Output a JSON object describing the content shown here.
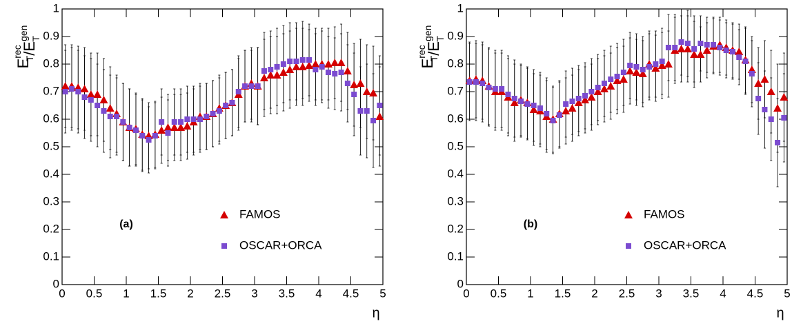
{
  "chart_data": [
    {
      "type": "scatter",
      "panel_label": "(a)",
      "xlabel": "η",
      "ylabel": [
        {
          "text": "E",
          "sup": "rec",
          "sub": "T"
        },
        {
          "text": "/E",
          "sup": "gen",
          "sub": "T"
        }
      ],
      "xlim": [
        0,
        5
      ],
      "ylim": [
        0,
        1
      ],
      "xticks": [
        0,
        0.5,
        1,
        1.5,
        2,
        2.5,
        3,
        3.5,
        4,
        4.5,
        5
      ],
      "yticks": [
        0,
        0.1,
        0.2,
        0.3,
        0.4,
        0.5,
        0.6,
        0.7,
        0.8,
        0.9,
        1
      ],
      "x": [
        0.05,
        0.15,
        0.25,
        0.35,
        0.45,
        0.55,
        0.65,
        0.75,
        0.85,
        0.95,
        1.05,
        1.15,
        1.25,
        1.35,
        1.45,
        1.55,
        1.65,
        1.75,
        1.85,
        1.95,
        2.05,
        2.15,
        2.25,
        2.35,
        2.45,
        2.55,
        2.65,
        2.75,
        2.85,
        2.95,
        3.05,
        3.15,
        3.25,
        3.35,
        3.45,
        3.55,
        3.65,
        3.75,
        3.85,
        3.95,
        4.05,
        4.15,
        4.25,
        4.35,
        4.45,
        4.55,
        4.65,
        4.75,
        4.85,
        4.95
      ],
      "series": [
        {
          "name": "FAMOS",
          "marker": "triangle",
          "color": "#d40000",
          "values": [
            0.72,
            0.72,
            0.715,
            0.71,
            0.69,
            0.69,
            0.67,
            0.64,
            0.62,
            0.59,
            0.57,
            0.565,
            0.545,
            0.54,
            0.545,
            0.56,
            0.57,
            0.57,
            0.57,
            0.575,
            0.59,
            0.61,
            0.61,
            0.62,
            0.64,
            0.65,
            0.66,
            0.69,
            0.72,
            0.73,
            0.72,
            0.75,
            0.76,
            0.76,
            0.77,
            0.78,
            0.79,
            0.79,
            0.795,
            0.8,
            0.8,
            0.8,
            0.805,
            0.805,
            0.775,
            0.725,
            0.73,
            0.7,
            0.695,
            0.61
          ],
          "errors": [
            0.15,
            0.15,
            0.15,
            0.15,
            0.15,
            0.15,
            0.15,
            0.15,
            0.14,
            0.14,
            0.14,
            0.13,
            0.13,
            0.12,
            0.12,
            0.12,
            0.12,
            0.12,
            0.12,
            0.12,
            0.12,
            0.12,
            0.12,
            0.12,
            0.12,
            0.12,
            0.12,
            0.13,
            0.13,
            0.13,
            0.14,
            0.14,
            0.14,
            0.14,
            0.14,
            0.14,
            0.14,
            0.14,
            0.13,
            0.13,
            0.13,
            0.13,
            0.13,
            0.14,
            0.14,
            0.15,
            0.16,
            0.17,
            0.17,
            0.18
          ]
        },
        {
          "name": "OSCAR+ORCA",
          "marker": "square",
          "color": "#7b4bd0",
          "values": [
            0.7,
            0.71,
            0.7,
            0.68,
            0.67,
            0.65,
            0.63,
            0.61,
            0.61,
            0.59,
            0.57,
            0.56,
            0.54,
            0.525,
            0.54,
            0.59,
            0.55,
            0.59,
            0.59,
            0.6,
            0.6,
            0.6,
            0.61,
            0.62,
            0.63,
            0.65,
            0.66,
            0.7,
            0.72,
            0.72,
            0.72,
            0.775,
            0.78,
            0.79,
            0.8,
            0.81,
            0.81,
            0.815,
            0.815,
            0.78,
            0.79,
            0.77,
            0.765,
            0.77,
            0.73,
            0.69,
            0.63,
            0.63,
            0.595,
            0.65
          ],
          "errors": [
            0.15,
            0.15,
            0.15,
            0.15,
            0.15,
            0.15,
            0.15,
            0.15,
            0.14,
            0.14,
            0.14,
            0.13,
            0.13,
            0.12,
            0.12,
            0.12,
            0.12,
            0.12,
            0.12,
            0.12,
            0.12,
            0.12,
            0.12,
            0.12,
            0.12,
            0.12,
            0.12,
            0.13,
            0.13,
            0.13,
            0.14,
            0.14,
            0.14,
            0.14,
            0.14,
            0.14,
            0.14,
            0.14,
            0.13,
            0.13,
            0.13,
            0.13,
            0.13,
            0.14,
            0.14,
            0.15,
            0.16,
            0.17,
            0.17,
            0.18
          ]
        }
      ]
    },
    {
      "type": "scatter",
      "panel_label": "(b)",
      "xlabel": "η",
      "ylabel": [
        {
          "text": "E",
          "sup": "rec",
          "sub": "T"
        },
        {
          "text": "/E",
          "sup": "gen",
          "sub": "T"
        }
      ],
      "xlim": [
        0,
        5
      ],
      "ylim": [
        0,
        1
      ],
      "xticks": [
        0,
        0.5,
        1,
        1.5,
        2,
        2.5,
        3,
        3.5,
        4,
        4.5,
        5
      ],
      "yticks": [
        0,
        0.1,
        0.2,
        0.3,
        0.4,
        0.5,
        0.6,
        0.7,
        0.8,
        0.9,
        1
      ],
      "x": [
        0.05,
        0.15,
        0.25,
        0.35,
        0.45,
        0.55,
        0.65,
        0.75,
        0.85,
        0.95,
        1.05,
        1.15,
        1.25,
        1.35,
        1.45,
        1.55,
        1.65,
        1.75,
        1.85,
        1.95,
        2.05,
        2.15,
        2.25,
        2.35,
        2.45,
        2.55,
        2.65,
        2.75,
        2.85,
        2.95,
        3.05,
        3.15,
        3.25,
        3.35,
        3.45,
        3.55,
        3.65,
        3.75,
        3.85,
        3.95,
        4.05,
        4.15,
        4.25,
        4.35,
        4.45,
        4.55,
        4.65,
        4.75,
        4.85,
        4.95
      ],
      "series": [
        {
          "name": "FAMOS",
          "marker": "triangle",
          "color": "#d40000",
          "values": [
            0.74,
            0.745,
            0.74,
            0.72,
            0.7,
            0.7,
            0.68,
            0.66,
            0.67,
            0.66,
            0.635,
            0.63,
            0.61,
            0.6,
            0.62,
            0.63,
            0.64,
            0.66,
            0.67,
            0.68,
            0.7,
            0.71,
            0.72,
            0.74,
            0.745,
            0.775,
            0.77,
            0.765,
            0.8,
            0.785,
            0.795,
            0.8,
            0.85,
            0.855,
            0.855,
            0.835,
            0.835,
            0.85,
            0.865,
            0.87,
            0.86,
            0.85,
            0.845,
            0.815,
            0.78,
            0.73,
            0.745,
            0.7,
            0.64,
            0.68
          ],
          "errors": [
            0.14,
            0.14,
            0.14,
            0.14,
            0.14,
            0.14,
            0.14,
            0.14,
            0.13,
            0.13,
            0.13,
            0.13,
            0.13,
            0.12,
            0.12,
            0.12,
            0.12,
            0.12,
            0.12,
            0.12,
            0.12,
            0.12,
            0.12,
            0.12,
            0.12,
            0.12,
            0.12,
            0.12,
            0.12,
            0.12,
            0.12,
            0.12,
            0.12,
            0.12,
            0.12,
            0.12,
            0.1,
            0.1,
            0.1,
            0.1,
            0.1,
            0.1,
            0.1,
            0.12,
            0.12,
            0.13,
            0.14,
            0.15,
            0.16,
            0.16
          ]
        },
        {
          "name": "OSCAR+ORCA",
          "marker": "square",
          "color": "#7b4bd0",
          "values": [
            0.735,
            0.735,
            0.73,
            0.715,
            0.71,
            0.71,
            0.69,
            0.675,
            0.665,
            0.655,
            0.65,
            0.64,
            0.62,
            0.595,
            0.615,
            0.655,
            0.665,
            0.675,
            0.685,
            0.7,
            0.715,
            0.73,
            0.745,
            0.755,
            0.77,
            0.795,
            0.79,
            0.78,
            0.79,
            0.8,
            0.81,
            0.86,
            0.86,
            0.88,
            0.875,
            0.855,
            0.875,
            0.87,
            0.87,
            0.86,
            0.85,
            0.845,
            0.825,
            0.81,
            0.765,
            0.675,
            0.635,
            0.6,
            0.515,
            0.605
          ],
          "errors": [
            0.14,
            0.14,
            0.14,
            0.14,
            0.14,
            0.14,
            0.14,
            0.14,
            0.13,
            0.13,
            0.13,
            0.13,
            0.13,
            0.12,
            0.12,
            0.12,
            0.12,
            0.12,
            0.12,
            0.12,
            0.12,
            0.12,
            0.12,
            0.12,
            0.12,
            0.12,
            0.12,
            0.12,
            0.12,
            0.12,
            0.12,
            0.12,
            0.12,
            0.12,
            0.12,
            0.12,
            0.1,
            0.1,
            0.1,
            0.1,
            0.1,
            0.1,
            0.1,
            0.12,
            0.12,
            0.13,
            0.14,
            0.15,
            0.16,
            0.16
          ]
        }
      ]
    }
  ]
}
